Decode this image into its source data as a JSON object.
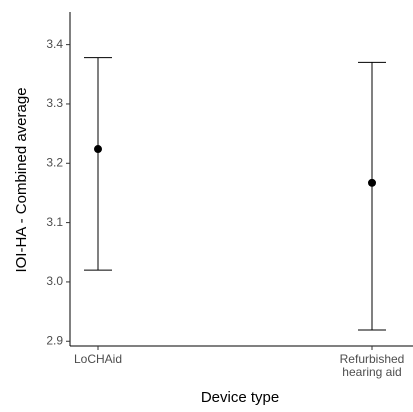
{
  "chart_data": {
    "type": "errorbar",
    "x_label": "Device type",
    "y_label": "IOI-HA - Combined average",
    "categories": [
      "LoCHAid",
      "Refurbished hearing aid"
    ],
    "values": [
      3.224,
      3.167
    ],
    "upper": [
      3.378,
      3.37
    ],
    "lower": [
      3.02,
      2.919
    ],
    "color": "#000000",
    "ylim": [
      2.892,
      3.455
    ],
    "yticks": [
      {
        "value": 2.9,
        "label": "2.9"
      },
      {
        "value": 3.0,
        "label": "3.0"
      },
      {
        "value": 3.1,
        "label": "3.1"
      },
      {
        "value": 3.2,
        "label": "3.2"
      },
      {
        "value": 3.3,
        "label": "3.3"
      },
      {
        "value": 3.4,
        "label": "3.4"
      }
    ],
    "grid": false
  }
}
